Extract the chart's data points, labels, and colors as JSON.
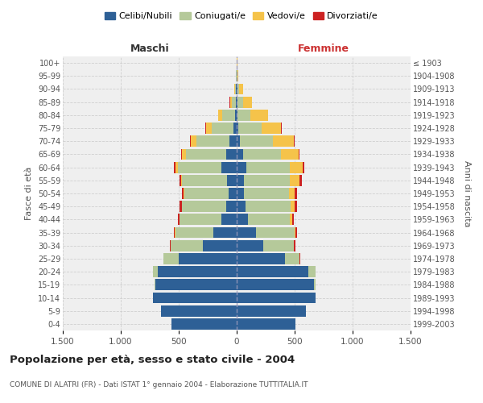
{
  "age_groups": [
    "0-4",
    "5-9",
    "10-14",
    "15-19",
    "20-24",
    "25-29",
    "30-34",
    "35-39",
    "40-44",
    "45-49",
    "50-54",
    "55-59",
    "60-64",
    "65-69",
    "70-74",
    "75-79",
    "80-84",
    "85-89",
    "90-94",
    "95-99",
    "100+"
  ],
  "birth_years": [
    "1999-2003",
    "1994-1998",
    "1989-1993",
    "1984-1988",
    "1979-1983",
    "1974-1978",
    "1969-1973",
    "1964-1968",
    "1959-1963",
    "1954-1958",
    "1949-1953",
    "1944-1948",
    "1939-1943",
    "1934-1938",
    "1929-1933",
    "1924-1928",
    "1919-1923",
    "1914-1918",
    "1909-1913",
    "1904-1908",
    "≤ 1903"
  ],
  "males": {
    "celibe": [
      560,
      650,
      720,
      700,
      680,
      500,
      290,
      200,
      130,
      90,
      70,
      80,
      130,
      90,
      60,
      25,
      15,
      8,
      5,
      2,
      2
    ],
    "coniugato": [
      0,
      0,
      0,
      5,
      40,
      130,
      280,
      330,
      360,
      380,
      380,
      390,
      380,
      350,
      290,
      190,
      110,
      35,
      10,
      3,
      0
    ],
    "vedovo": [
      0,
      0,
      0,
      0,
      0,
      0,
      0,
      2,
      2,
      5,
      5,
      10,
      20,
      30,
      45,
      50,
      35,
      15,
      5,
      2,
      0
    ],
    "divorziato": [
      0,
      0,
      0,
      0,
      2,
      5,
      8,
      10,
      12,
      15,
      15,
      15,
      10,
      8,
      5,
      5,
      2,
      2,
      0,
      0,
      0
    ]
  },
  "females": {
    "nubile": [
      510,
      600,
      680,
      670,
      620,
      420,
      230,
      170,
      100,
      75,
      60,
      60,
      80,
      55,
      30,
      15,
      10,
      8,
      5,
      2,
      2
    ],
    "coniugata": [
      0,
      0,
      2,
      8,
      60,
      120,
      260,
      330,
      360,
      390,
      390,
      400,
      380,
      330,
      280,
      200,
      110,
      45,
      15,
      3,
      0
    ],
    "vedova": [
      0,
      0,
      0,
      0,
      2,
      2,
      5,
      10,
      20,
      35,
      50,
      80,
      110,
      150,
      180,
      170,
      150,
      80,
      35,
      10,
      2
    ],
    "divorziata": [
      0,
      0,
      0,
      0,
      2,
      8,
      10,
      12,
      15,
      18,
      20,
      20,
      12,
      10,
      8,
      5,
      2,
      2,
      0,
      0,
      0
    ]
  },
  "colors": {
    "celibe": "#2e6096",
    "coniugato": "#b5c99a",
    "vedovo": "#f5c34a",
    "divorziato": "#cc2222"
  },
  "legend_labels": [
    "Celibi/Nubili",
    "Coniugati/e",
    "Vedovi/e",
    "Divorziati/e"
  ],
  "title": "Popolazione per età, sesso e stato civile - 2004",
  "subtitle": "COMUNE DI ALATRI (FR) - Dati ISTAT 1° gennaio 2004 - Elaborazione TUTTITALIA.IT",
  "xlabel_left": "Maschi",
  "xlabel_right": "Femmine",
  "ylabel_left": "Fasce di età",
  "ylabel_right": "Anni di nascita",
  "xlim": 1500,
  "bg_color": "#ffffff",
  "plot_bg": "#efefef",
  "grid_color": "#cccccc"
}
